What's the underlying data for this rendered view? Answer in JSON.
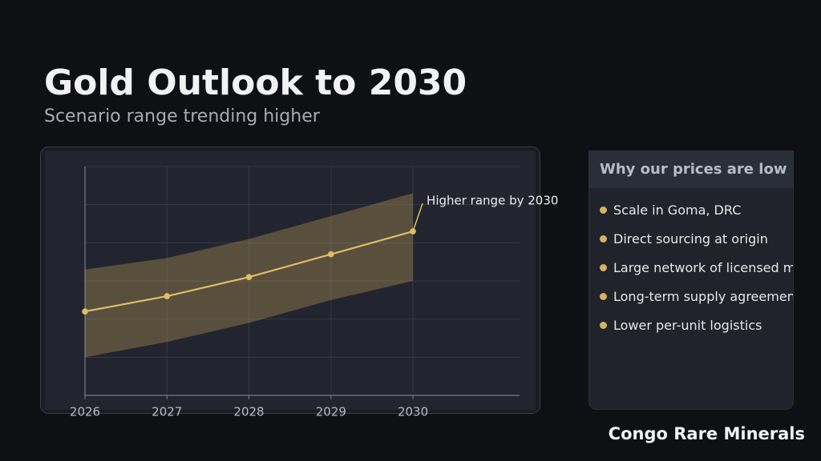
{
  "chart_data": {
    "type": "band-line",
    "title": "Gold Outlook to 2030",
    "subtitle": "Scenario range trending higher",
    "x": [
      2026,
      2027,
      2028,
      2029,
      2030
    ],
    "series": [
      {
        "color": "#e3bb66",
        "values": [
          2.2,
          2.6,
          3.1,
          3.7,
          4.3
        ]
      }
    ],
    "band": {
      "color": "#c9a95c",
      "upper": [
        3.3,
        3.6,
        4.1,
        4.7,
        5.3
      ],
      "lower": [
        1.0,
        1.4,
        1.9,
        2.5,
        3.0
      ]
    },
    "annotation": "Higher range by 2030",
    "xlim": [
      2026,
      2031.3
    ],
    "xticks": [
      2026,
      2027,
      2028,
      2029,
      2030
    ],
    "ylim": [
      0,
      6
    ],
    "yticks": [
      0,
      1,
      2,
      3,
      4,
      5,
      6
    ],
    "grid": true
  },
  "panel": {
    "title": "Why our prices are low",
    "items": [
      "Scale in Goma, DRC",
      "Direct sourcing at origin",
      "Large network of licensed miners",
      "Long-term supply agreements",
      "Lower per-unit logistics"
    ]
  },
  "footer": "Congo Rare Minerals"
}
